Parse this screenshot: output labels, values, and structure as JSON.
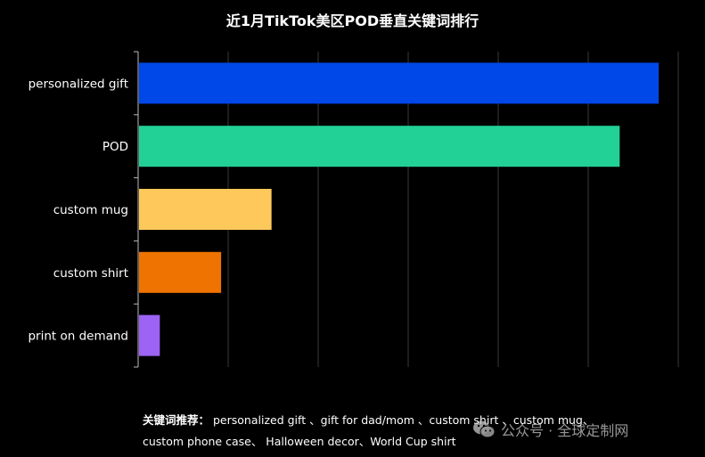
{
  "chart_data": {
    "type": "bar",
    "orientation": "horizontal",
    "title": "近1月TikTok美区POD垂直关键词排行",
    "categories": [
      "personalized gift",
      "POD",
      "custom mug",
      "custom shirt",
      "print on demand"
    ],
    "values": [
      100,
      92.5,
      25.5,
      15.8,
      4
    ],
    "colors": [
      "#0048e8",
      "#22d195",
      "#fec85a",
      "#ee7300",
      "#9d63f5"
    ],
    "xlim": [
      0,
      100
    ],
    "grid": "vertical",
    "xlabel": "",
    "ylabel": ""
  },
  "note": {
    "label": "关键词推荐：",
    "text_line1": " personalized gift 、gift for dad/mom 、custom shirt 、custom mug、",
    "text_line2": "custom phone case、 Halloween decor、World Cup shirt"
  },
  "watermark": {
    "text": "公众号 · 全球定制网",
    "icon": "wechat-icon"
  }
}
